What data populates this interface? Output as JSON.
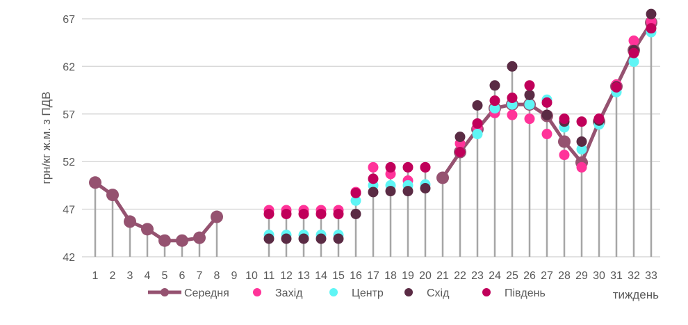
{
  "chart_data": {
    "type": "line",
    "title": "",
    "xlabel": "тиждень",
    "ylabel": "грн/кг ж.м. з ПДВ",
    "ylim": [
      42,
      67
    ],
    "yticks": [
      42,
      47,
      52,
      57,
      62,
      67
    ],
    "grid": true,
    "legend_placement": "bottom",
    "categories": [
      "1",
      "2",
      "3",
      "4",
      "5",
      "6",
      "7",
      "8",
      "9",
      "10",
      "11",
      "12",
      "13",
      "14",
      "15",
      "16",
      "17",
      "18",
      "19",
      "20",
      "21",
      "22",
      "23",
      "24",
      "25",
      "26",
      "27",
      "28",
      "29",
      "30",
      "31",
      "32",
      "33"
    ],
    "series": [
      {
        "name": "Середня",
        "style": "line-markers",
        "color": "#955270",
        "values": [
          49.8,
          48.5,
          45.7,
          44.9,
          43.7,
          43.7,
          44.0,
          46.2,
          null,
          null,
          null,
          null,
          null,
          null,
          null,
          null,
          null,
          null,
          null,
          null,
          50.3,
          53.0,
          55.4,
          57.6,
          58.0,
          58.0,
          56.8,
          54.1,
          51.9,
          56.2,
          59.9,
          63.7,
          66.6
        ]
      },
      {
        "name": "Захід",
        "style": "markers",
        "color": "#ff3399",
        "values": [
          null,
          null,
          null,
          null,
          null,
          null,
          null,
          null,
          null,
          null,
          46.9,
          46.9,
          46.9,
          46.9,
          46.9,
          48.8,
          51.4,
          50.7,
          50.0,
          51.4,
          null,
          53.9,
          55.6,
          57.1,
          56.9,
          56.5,
          54.9,
          52.7,
          51.4,
          56.5,
          60.1,
          64.7,
          66.7
        ]
      },
      {
        "name": "Центр",
        "style": "markers",
        "color": "#5ff5f5",
        "values": [
          null,
          null,
          null,
          null,
          null,
          null,
          null,
          null,
          null,
          null,
          44.3,
          44.3,
          44.3,
          44.3,
          44.3,
          47.9,
          49.5,
          49.5,
          49.5,
          49.6,
          null,
          53.0,
          54.9,
          57.6,
          58.0,
          58.0,
          58.5,
          55.6,
          53.3,
          55.9,
          59.3,
          62.5,
          65.6
        ]
      },
      {
        "name": "Схід",
        "style": "markers",
        "color": "#5a2b44",
        "values": [
          null,
          null,
          null,
          null,
          null,
          null,
          null,
          null,
          null,
          null,
          43.9,
          43.9,
          43.9,
          43.9,
          43.9,
          46.5,
          48.8,
          48.9,
          48.9,
          49.2,
          null,
          54.6,
          57.9,
          60.0,
          62.0,
          59.0,
          56.9,
          56.2,
          54.1,
          56.3,
          59.9,
          63.7,
          67.5
        ]
      },
      {
        "name": "Південь",
        "style": "markers",
        "color": "#c0005a",
        "values": [
          null,
          null,
          null,
          null,
          null,
          null,
          null,
          null,
          null,
          null,
          46.5,
          46.5,
          46.5,
          46.5,
          46.5,
          48.7,
          50.2,
          51.4,
          51.4,
          51.4,
          null,
          53.0,
          56.0,
          58.4,
          58.7,
          60.0,
          58.2,
          56.5,
          56.2,
          56.5,
          59.8,
          63.4,
          66.0
        ]
      }
    ]
  }
}
